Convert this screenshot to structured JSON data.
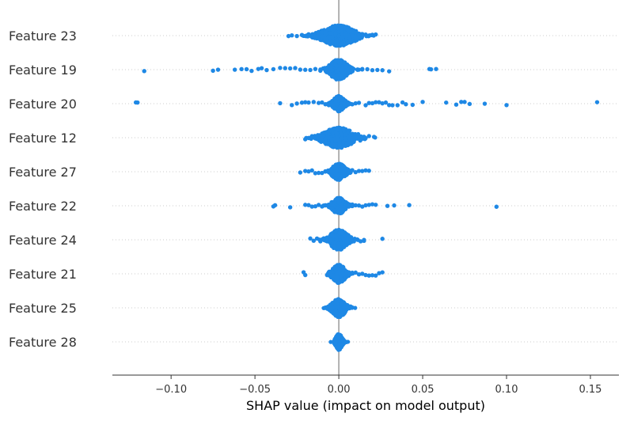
{
  "chart_data": {
    "type": "scatter",
    "subtype": "shap-beeswarm",
    "title": "",
    "xlabel": "SHAP value (impact on model output)",
    "ylabel": "",
    "xlim": [
      -0.135,
      0.167
    ],
    "xticks": [
      -0.1,
      -0.05,
      0.0,
      0.05,
      0.1,
      0.15
    ],
    "xtick_labels": [
      "−0.10",
      "−0.05",
      "0.00",
      "0.05",
      "0.10",
      "0.15"
    ],
    "grid": false,
    "colors": {
      "points": "#1e88e5",
      "zero_line": "#999999",
      "guide": "#cccccc",
      "axis": "#333333"
    },
    "features": [
      {
        "name": "Feature 23",
        "core_sd": 0.0075,
        "density": 1.6,
        "points": [
          -0.03,
          -0.028,
          -0.025,
          -0.022,
          -0.02,
          -0.018,
          -0.016,
          -0.014,
          -0.012,
          -0.01,
          -0.008,
          -0.006,
          -0.004,
          -0.002,
          0.0,
          0.002,
          0.004,
          0.006,
          0.008,
          0.01,
          0.012,
          0.014,
          0.016,
          0.018,
          0.02,
          0.022
        ]
      },
      {
        "name": "Feature 19",
        "core_sd": 0.004,
        "density": 1.0,
        "points": [
          -0.116,
          -0.075,
          -0.072,
          -0.062,
          -0.058,
          -0.055,
          -0.052,
          -0.048,
          -0.046,
          -0.043,
          -0.039,
          -0.035,
          -0.032,
          -0.029,
          -0.026,
          -0.023,
          -0.02,
          -0.017,
          -0.014,
          -0.011,
          -0.008,
          -0.005,
          0.005,
          0.008,
          0.011,
          0.014,
          0.017,
          0.02,
          0.023,
          0.026,
          0.03,
          0.054,
          0.055,
          0.058
        ]
      },
      {
        "name": "Feature 20",
        "core_sd": 0.0025,
        "density": 0.75,
        "points": [
          -0.121,
          -0.12,
          -0.035,
          -0.028,
          -0.025,
          -0.022,
          -0.02,
          -0.018,
          -0.015,
          -0.012,
          -0.01,
          -0.008,
          -0.006,
          -0.004,
          0.004,
          0.006,
          0.008,
          0.01,
          0.012,
          0.016,
          0.018,
          0.02,
          0.022,
          0.024,
          0.026,
          0.028,
          0.03,
          0.032,
          0.035,
          0.038,
          0.04,
          0.044,
          0.05,
          0.064,
          0.07,
          0.073,
          0.075,
          0.078,
          0.087,
          0.1,
          0.154
        ]
      },
      {
        "name": "Feature 12",
        "core_sd": 0.007,
        "density": 1.5,
        "points": [
          -0.02,
          -0.018,
          -0.016,
          -0.014,
          -0.012,
          -0.01,
          -0.008,
          -0.006,
          -0.004,
          0.004,
          0.006,
          0.008,
          0.01,
          0.012,
          0.014,
          0.016,
          0.018,
          0.021
        ]
      },
      {
        "name": "Feature 27",
        "core_sd": 0.003,
        "density": 0.8,
        "points": [
          -0.023,
          -0.02,
          -0.018,
          -0.016,
          -0.014,
          -0.012,
          -0.01,
          -0.008,
          -0.006,
          -0.004,
          0.004,
          0.006,
          0.008,
          0.01,
          0.012,
          0.014,
          0.016,
          0.018
        ]
      },
      {
        "name": "Feature 22",
        "core_sd": 0.003,
        "density": 0.8,
        "points": [
          -0.039,
          -0.038,
          -0.029,
          -0.02,
          -0.018,
          -0.016,
          -0.014,
          -0.012,
          -0.01,
          -0.008,
          -0.006,
          -0.004,
          0.004,
          0.006,
          0.008,
          0.01,
          0.012,
          0.014,
          0.016,
          0.018,
          0.02,
          0.022,
          0.029,
          0.033,
          0.042,
          0.094
        ]
      },
      {
        "name": "Feature 24",
        "core_sd": 0.004,
        "density": 1.0,
        "points": [
          -0.017,
          -0.015,
          -0.013,
          -0.011,
          -0.009,
          -0.007,
          -0.005,
          0.005,
          0.007,
          0.009,
          0.011,
          0.013,
          0.015,
          0.026
        ]
      },
      {
        "name": "Feature 21",
        "core_sd": 0.003,
        "density": 0.9,
        "points": [
          -0.021,
          -0.02,
          -0.007,
          -0.006,
          -0.005,
          -0.004,
          0.004,
          0.006,
          0.008,
          0.01,
          0.012,
          0.014,
          0.016,
          0.018,
          0.02,
          0.022,
          0.024,
          0.026
        ]
      },
      {
        "name": "Feature 25",
        "core_sd": 0.003,
        "density": 0.9,
        "points": [
          -0.007,
          -0.006,
          -0.005,
          0.005,
          0.006,
          0.007,
          0.008
        ]
      },
      {
        "name": "Feature 28",
        "core_sd": 0.0015,
        "density": 0.8,
        "points": [
          -0.002,
          -0.001,
          0.001,
          0.002
        ]
      }
    ]
  }
}
